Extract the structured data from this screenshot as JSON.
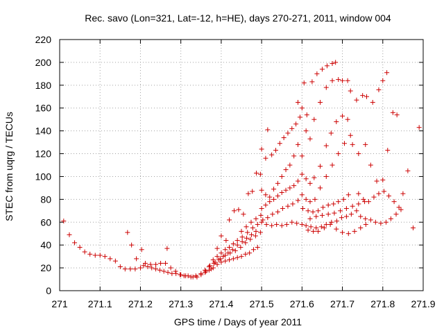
{
  "chart_data": {
    "type": "scatter",
    "title": "Rec. savo (Lon=321, Lat=-12, h=HE), days 270-271, 2011, window 004",
    "xlabel": "GPS time / Days of year 2011",
    "ylabel": "STEC from uqrg / TECUs",
    "xlim": [
      271,
      271.9
    ],
    "ylim": [
      0,
      220
    ],
    "xticks": [
      "271",
      "271.1",
      "271.2",
      "271.3",
      "271.4",
      "271.5",
      "271.6",
      "271.7",
      "271.8",
      "271.9"
    ],
    "yticks": [
      "0",
      "20",
      "40",
      "60",
      "80",
      "100",
      "120",
      "140",
      "160",
      "180",
      "200",
      "220"
    ],
    "marker": "+",
    "grid": true,
    "series": [
      {
        "name": "STEC",
        "color": "#cc0000",
        "points": [
          [
            271.01,
            61
          ],
          [
            271.024,
            49
          ],
          [
            271.037,
            42
          ],
          [
            271.05,
            38
          ],
          [
            271.062,
            34
          ],
          [
            271.075,
            32
          ],
          [
            271.088,
            31
          ],
          [
            271.1,
            31
          ],
          [
            271.112,
            30
          ],
          [
            271.125,
            28
          ],
          [
            271.138,
            26
          ],
          [
            271.15,
            21
          ],
          [
            271.162,
            19
          ],
          [
            271.175,
            19
          ],
          [
            271.187,
            19
          ],
          [
            271.2,
            20
          ],
          [
            271.168,
            51
          ],
          [
            271.178,
            40
          ],
          [
            271.19,
            28
          ],
          [
            271.203,
            36
          ],
          [
            271.208,
            22
          ],
          [
            271.218,
            21
          ],
          [
            271.228,
            20
          ],
          [
            271.238,
            19
          ],
          [
            271.248,
            18
          ],
          [
            271.258,
            17
          ],
          [
            271.268,
            16
          ],
          [
            271.278,
            15
          ],
          [
            271.288,
            15
          ],
          [
            271.298,
            14
          ],
          [
            271.308,
            13
          ],
          [
            271.318,
            13
          ],
          [
            271.33,
            12
          ],
          [
            271.34,
            12
          ],
          [
            271.212,
            24
          ],
          [
            271.225,
            23
          ],
          [
            271.238,
            23
          ],
          [
            271.25,
            24
          ],
          [
            271.262,
            24
          ],
          [
            271.266,
            37
          ],
          [
            271.275,
            20
          ],
          [
            271.287,
            17
          ],
          [
            271.3,
            14
          ],
          [
            271.312,
            13
          ],
          [
            271.325,
            12
          ],
          [
            271.337,
            13
          ],
          [
            271.35,
            15
          ],
          [
            271.362,
            17
          ],
          [
            271.375,
            19
          ],
          [
            271.35,
            14
          ],
          [
            271.36,
            16
          ],
          [
            271.37,
            18
          ],
          [
            271.38,
            20
          ],
          [
            271.39,
            23
          ],
          [
            271.4,
            25
          ],
          [
            271.41,
            26
          ],
          [
            271.42,
            27
          ],
          [
            271.43,
            28
          ],
          [
            271.44,
            29
          ],
          [
            271.45,
            30
          ],
          [
            271.46,
            32
          ],
          [
            271.47,
            33
          ],
          [
            271.48,
            36
          ],
          [
            271.49,
            38
          ],
          [
            271.36,
            18
          ],
          [
            271.372,
            22
          ],
          [
            271.385,
            25
          ],
          [
            271.398,
            28
          ],
          [
            271.41,
            31
          ],
          [
            271.422,
            33
          ],
          [
            271.435,
            35
          ],
          [
            271.448,
            38
          ],
          [
            271.46,
            42
          ],
          [
            271.472,
            45
          ],
          [
            271.485,
            48
          ],
          [
            271.497,
            51
          ],
          [
            271.37,
            21
          ],
          [
            271.382,
            24
          ],
          [
            271.394,
            27
          ],
          [
            271.405,
            30
          ],
          [
            271.417,
            33
          ],
          [
            271.428,
            36
          ],
          [
            271.44,
            40
          ],
          [
            271.452,
            43
          ],
          [
            271.463,
            46
          ],
          [
            271.475,
            49
          ],
          [
            271.486,
            52
          ],
          [
            271.38,
            27
          ],
          [
            271.39,
            30
          ],
          [
            271.4,
            33
          ],
          [
            271.41,
            36
          ],
          [
            271.42,
            38
          ],
          [
            271.43,
            41
          ],
          [
            271.44,
            44
          ],
          [
            271.452,
            47
          ],
          [
            271.465,
            51
          ],
          [
            271.478,
            55
          ],
          [
            271.49,
            58
          ],
          [
            271.39,
            37
          ],
          [
            271.4,
            48
          ],
          [
            271.412,
            44
          ],
          [
            271.42,
            62
          ],
          [
            271.432,
            70
          ],
          [
            271.443,
            71
          ],
          [
            271.455,
            67
          ],
          [
            271.467,
            85
          ],
          [
            271.477,
            87
          ],
          [
            271.487,
            103
          ],
          [
            271.497,
            102
          ],
          [
            271.45,
            52
          ],
          [
            271.462,
            56
          ],
          [
            271.474,
            60
          ],
          [
            271.486,
            63
          ],
          [
            271.498,
            66
          ],
          [
            271.5,
            124
          ],
          [
            271.51,
            116
          ],
          [
            271.515,
            141
          ],
          [
            271.525,
            119
          ],
          [
            271.535,
            123
          ],
          [
            271.545,
            129
          ],
          [
            271.555,
            134
          ],
          [
            271.565,
            138
          ],
          [
            271.575,
            142
          ],
          [
            271.585,
            146
          ],
          [
            271.595,
            152
          ],
          [
            271.5,
            88
          ],
          [
            271.51,
            84
          ],
          [
            271.52,
            82
          ],
          [
            271.53,
            89
          ],
          [
            271.54,
            94
          ],
          [
            271.55,
            100
          ],
          [
            271.56,
            106
          ],
          [
            271.57,
            110
          ],
          [
            271.58,
            118
          ],
          [
            271.59,
            128
          ],
          [
            271.5,
            72
          ],
          [
            271.51,
            75
          ],
          [
            271.52,
            78
          ],
          [
            271.53,
            80
          ],
          [
            271.54,
            83
          ],
          [
            271.55,
            86
          ],
          [
            271.56,
            88
          ],
          [
            271.57,
            90
          ],
          [
            271.58,
            92
          ],
          [
            271.59,
            96
          ],
          [
            271.5,
            60
          ],
          [
            271.512,
            58
          ],
          [
            271.525,
            57
          ],
          [
            271.537,
            58
          ],
          [
            271.55,
            57
          ],
          [
            271.562,
            58
          ],
          [
            271.575,
            60
          ],
          [
            271.587,
            59
          ],
          [
            271.6,
            58
          ],
          [
            271.503,
            62
          ],
          [
            271.515,
            64
          ],
          [
            271.527,
            67
          ],
          [
            271.54,
            69
          ],
          [
            271.552,
            72
          ],
          [
            271.565,
            74
          ],
          [
            271.577,
            76
          ],
          [
            271.59,
            79
          ],
          [
            271.59,
            165
          ],
          [
            271.6,
            160
          ],
          [
            271.605,
            182
          ],
          [
            271.612,
            154
          ],
          [
            271.625,
            183
          ],
          [
            271.637,
            190
          ],
          [
            271.65,
            194
          ],
          [
            271.662,
            197
          ],
          [
            271.675,
            199
          ],
          [
            271.683,
            200
          ],
          [
            271.6,
            118
          ],
          [
            271.61,
            140
          ],
          [
            271.62,
            133
          ],
          [
            271.63,
            150
          ],
          [
            271.645,
            165
          ],
          [
            271.66,
            178
          ],
          [
            271.675,
            184
          ],
          [
            271.69,
            185
          ],
          [
            271.7,
            184
          ],
          [
            271.713,
            184
          ],
          [
            271.6,
            102
          ],
          [
            271.61,
            98
          ],
          [
            271.62,
            94
          ],
          [
            271.63,
            99
          ],
          [
            271.645,
            109
          ],
          [
            271.66,
            127
          ],
          [
            271.672,
            138
          ],
          [
            271.685,
            148
          ],
          [
            271.7,
            153
          ],
          [
            271.713,
            150
          ],
          [
            271.6,
            84
          ],
          [
            271.61,
            80
          ],
          [
            271.62,
            78
          ],
          [
            271.632,
            80
          ],
          [
            271.645,
            90
          ],
          [
            271.66,
            100
          ],
          [
            271.675,
            110
          ],
          [
            271.69,
            120
          ],
          [
            271.705,
            129
          ],
          [
            271.72,
            136
          ],
          [
            271.602,
            72
          ],
          [
            271.615,
            70
          ],
          [
            271.627,
            69
          ],
          [
            271.64,
            70
          ],
          [
            271.652,
            73
          ],
          [
            271.665,
            75
          ],
          [
            271.678,
            76
          ],
          [
            271.69,
            78
          ],
          [
            271.703,
            80
          ],
          [
            271.715,
            84
          ],
          [
            271.61,
            57
          ],
          [
            271.622,
            56
          ],
          [
            271.635,
            55
          ],
          [
            271.648,
            56
          ],
          [
            271.66,
            58
          ],
          [
            271.673,
            60
          ],
          [
            271.686,
            61
          ],
          [
            271.698,
            64
          ],
          [
            271.71,
            65
          ],
          [
            271.722,
            67
          ],
          [
            271.735,
            70
          ],
          [
            271.615,
            53
          ],
          [
            271.628,
            52
          ],
          [
            271.64,
            52
          ],
          [
            271.655,
            55
          ],
          [
            271.67,
            58
          ],
          [
            271.685,
            54
          ],
          [
            271.7,
            51
          ],
          [
            271.715,
            50
          ],
          [
            271.73,
            52
          ],
          [
            271.745,
            55
          ],
          [
            271.758,
            58
          ],
          [
            271.62,
            63
          ],
          [
            271.635,
            65
          ],
          [
            271.65,
            66
          ],
          [
            271.665,
            67
          ],
          [
            271.68,
            68
          ],
          [
            271.695,
            70
          ],
          [
            271.71,
            72
          ],
          [
            271.725,
            74
          ],
          [
            271.74,
            76
          ],
          [
            271.755,
            78
          ],
          [
            271.72,
            175
          ],
          [
            271.735,
            167
          ],
          [
            271.75,
            171
          ],
          [
            271.76,
            170
          ],
          [
            271.775,
            165
          ],
          [
            271.79,
            176
          ],
          [
            271.8,
            184
          ],
          [
            271.81,
            191
          ],
          [
            271.725,
            128
          ],
          [
            271.74,
            120
          ],
          [
            271.757,
            128
          ],
          [
            271.77,
            110
          ],
          [
            271.785,
            96
          ],
          [
            271.8,
            97
          ],
          [
            271.812,
            123
          ],
          [
            271.825,
            156
          ],
          [
            271.835,
            154
          ],
          [
            271.74,
            85
          ],
          [
            271.752,
            80
          ],
          [
            271.765,
            78
          ],
          [
            271.778,
            82
          ],
          [
            271.79,
            85
          ],
          [
            271.803,
            87
          ],
          [
            271.815,
            83
          ],
          [
            271.828,
            78
          ],
          [
            271.84,
            73
          ],
          [
            271.745,
            65
          ],
          [
            271.757,
            63
          ],
          [
            271.77,
            62
          ],
          [
            271.782,
            60
          ],
          [
            271.795,
            59
          ],
          [
            271.808,
            60
          ],
          [
            271.82,
            63
          ],
          [
            271.833,
            67
          ],
          [
            271.845,
            71
          ],
          [
            271.85,
            85
          ],
          [
            271.862,
            105
          ],
          [
            271.875,
            55
          ],
          [
            271.89,
            143
          ]
        ]
      }
    ]
  }
}
